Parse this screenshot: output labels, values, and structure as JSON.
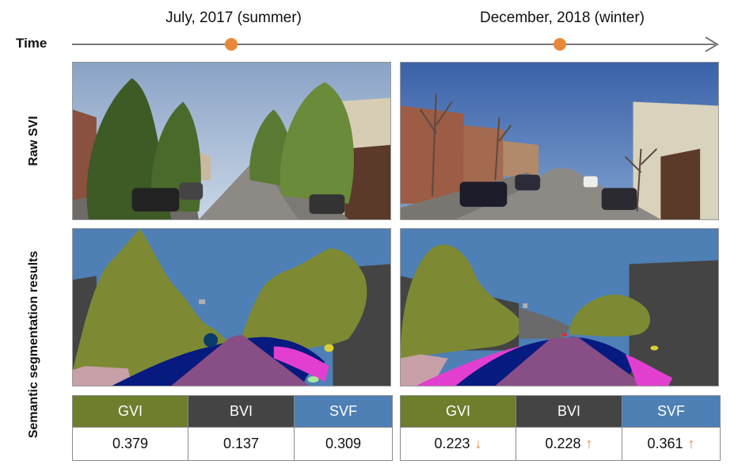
{
  "time_label": "Time",
  "periods": [
    {
      "label": "July, 2017 (summer)",
      "metrics": [
        {
          "name": "GVI",
          "value": "0.379",
          "trend": "",
          "color": "#6d7e2d"
        },
        {
          "name": "BVI",
          "value": "0.137",
          "trend": "",
          "color": "#444444"
        },
        {
          "name": "SVF",
          "value": "0.309",
          "trend": "",
          "color": "#4e7fb5"
        }
      ]
    },
    {
      "label": "December, 2018 (winter)",
      "metrics": [
        {
          "name": "GVI",
          "value": "0.223",
          "trend": "↓",
          "color": "#6d7e2d"
        },
        {
          "name": "BVI",
          "value": "0.228",
          "trend": "↑",
          "color": "#444444"
        },
        {
          "name": "SVF",
          "value": "0.361",
          "trend": "↑",
          "color": "#4e7fb5"
        }
      ]
    }
  ],
  "row_labels": {
    "raw": "Raw SVI",
    "segmentation": "Semantic segmentation results"
  },
  "colors": {
    "timeline": "#777777",
    "timeline_marker": "#e8893a",
    "trend_arrow": "#e08a35",
    "seg_sky": "#4e7fb5",
    "seg_vegetation": "#7d8a33",
    "seg_building": "#444444",
    "seg_road": "#874f86",
    "seg_sidewalk": "#e23fd0",
    "seg_car": "#061a80"
  }
}
